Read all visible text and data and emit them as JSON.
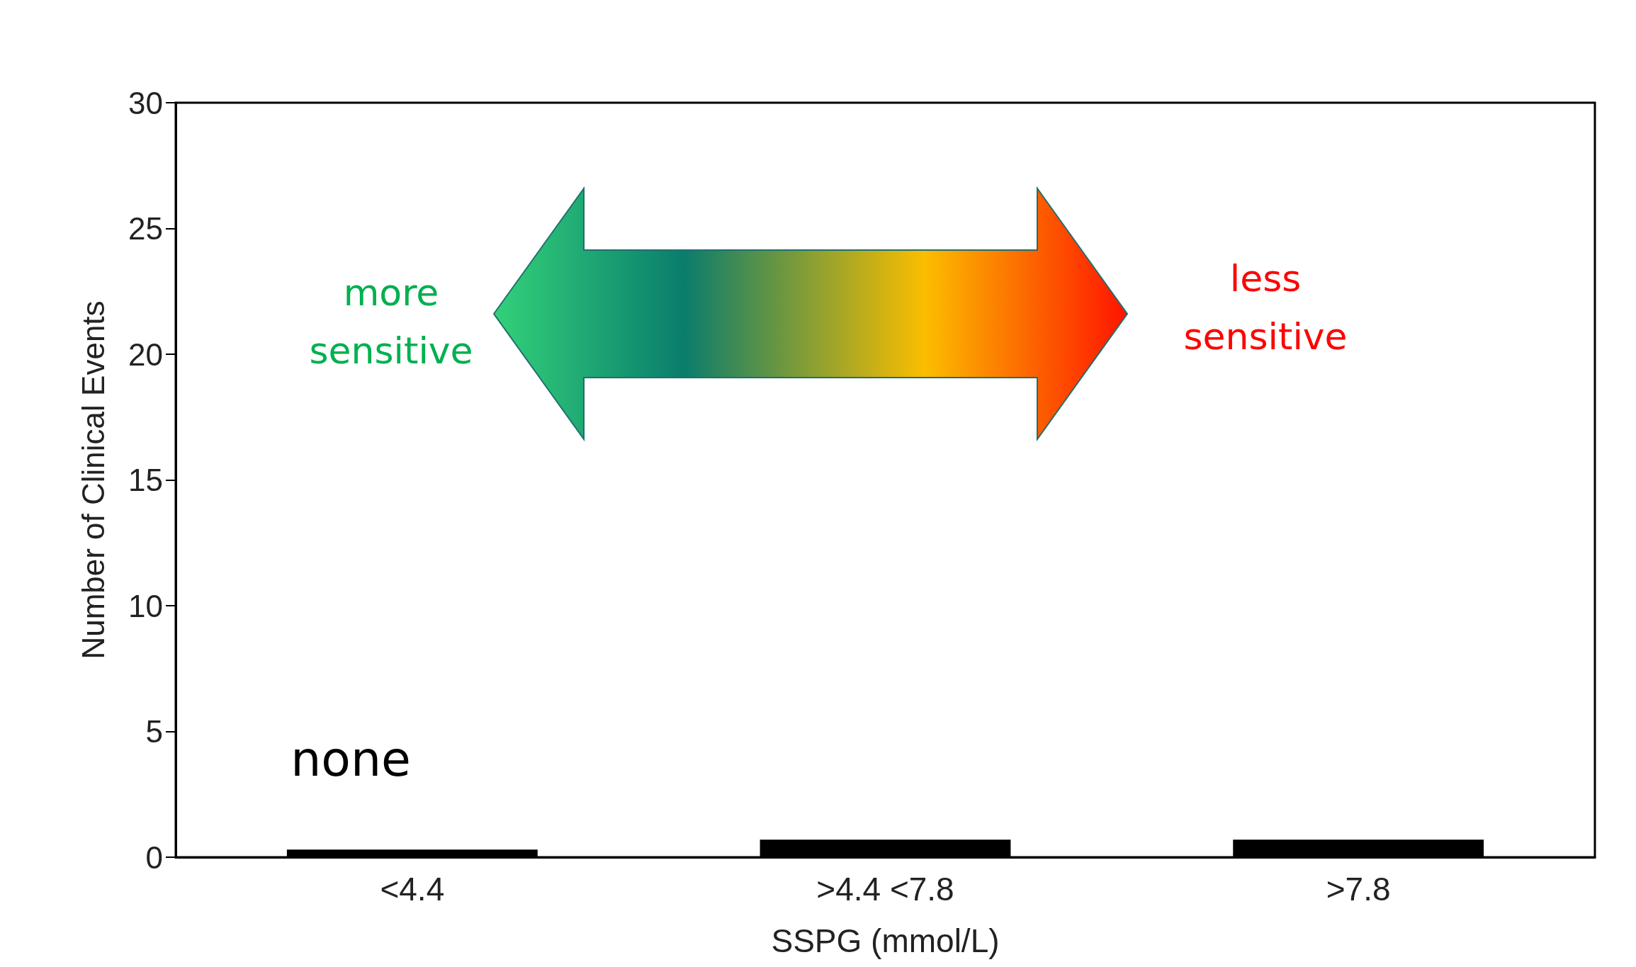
{
  "chart_data": {
    "type": "bar",
    "categories": [
      "<4.4",
      ">4.4 <7.8",
      ">7.8"
    ],
    "values": [
      0.3,
      0.7,
      0.7
    ],
    "color": "#000000",
    "xlabel": "SSPG (mmol/L)",
    "ylabel": "Number of Clinical Events",
    "ylim": [
      0,
      30
    ],
    "yticks": [
      0,
      5,
      10,
      15,
      20,
      25,
      30
    ],
    "grid": false,
    "annotations": [
      "none",
      "more\nsensitive",
      "less\nsensitive"
    ]
  }
}
